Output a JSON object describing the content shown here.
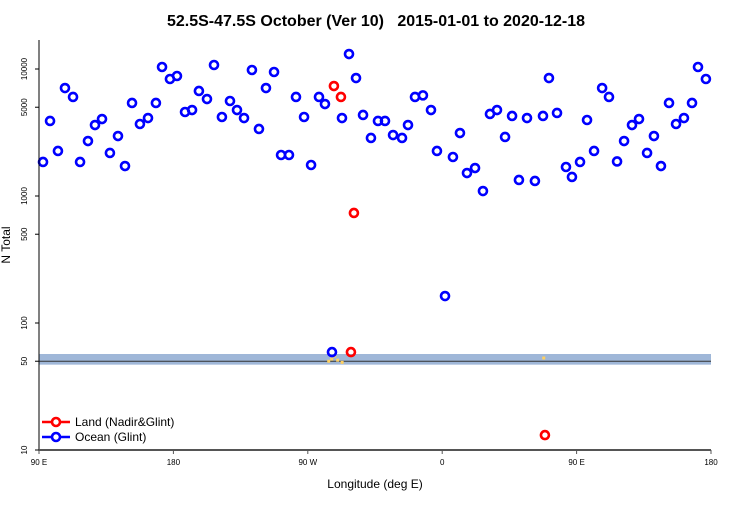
{
  "chart_data": {
    "type": "scatter",
    "title": "52.5S-47.5S October (Ver 10)   2015-01-01 to 2020-12-18",
    "xlabel": "Longitude (deg E)",
    "ylabel": "N Total",
    "yscale": "log",
    "ylim": [
      10,
      16900
    ],
    "xlim": [
      90,
      540
    ],
    "x_note": "x is longitude unwrapped eastward from 90E (180 = dateline, 360 = 0, 450 = 90E, 540 = 180)",
    "xticks": [
      {
        "value": 90,
        "label": "90 E"
      },
      {
        "value": 180,
        "label": "180"
      },
      {
        "value": 270,
        "label": "90 W"
      },
      {
        "value": 360,
        "label": "0"
      },
      {
        "value": 450,
        "label": "90 E"
      },
      {
        "value": 540,
        "label": "180"
      }
    ],
    "yticks": [
      {
        "value": 10,
        "label": "10"
      },
      {
        "value": 50,
        "label": "50"
      },
      {
        "value": 100,
        "label": "100"
      },
      {
        "value": 500,
        "label": "500"
      },
      {
        "value": 1000,
        "label": "1000"
      },
      {
        "value": 5000,
        "label": "5000"
      },
      {
        "value": 10000,
        "label": "10000"
      }
    ],
    "reference_band": {
      "low": 47,
      "high": 57,
      "line": 50,
      "color": "#9fb7d8"
    },
    "legend_position": "bottom-left",
    "series": [
      {
        "name": "Land (Nadir&Glint)",
        "color": "#ff0000",
        "points": [
          [
            287.5,
            7345
          ],
          [
            292.2,
            6025
          ],
          [
            300.9,
            735
          ],
          [
            298.9,
            59
          ],
          [
            428.8,
            13.1
          ]
        ]
      },
      {
        "name": "Ocean (Glint)",
        "color": "#0000ff",
        "points": [
          [
            92.7,
            1853
          ],
          [
            97.4,
            3899
          ],
          [
            102.7,
            2262
          ],
          [
            107.4,
            7080
          ],
          [
            112.8,
            6025
          ],
          [
            117.5,
            1853
          ],
          [
            122.8,
            2710
          ],
          [
            127.5,
            3622
          ],
          [
            132.2,
            4038
          ],
          [
            137.5,
            2183
          ],
          [
            142.9,
            2967
          ],
          [
            147.6,
            1722
          ],
          [
            152.3,
            5400
          ],
          [
            157.6,
            3690
          ],
          [
            163,
            4111
          ],
          [
            168.3,
            5400
          ],
          [
            172.4,
            10370
          ],
          [
            177.7,
            8340
          ],
          [
            182.4,
            8810
          ],
          [
            187.8,
            4585
          ],
          [
            192.5,
            4753
          ],
          [
            197.1,
            6714
          ],
          [
            202.5,
            5803
          ],
          [
            207.2,
            10750
          ],
          [
            212.5,
            4188
          ],
          [
            217.9,
            5598
          ],
          [
            222.6,
            4753
          ],
          [
            227.3,
            4111
          ],
          [
            232.6,
            9820
          ],
          [
            237.3,
            3371
          ],
          [
            242,
            7080
          ],
          [
            247.4,
            9470
          ],
          [
            252.1,
            2103
          ],
          [
            257.4,
            2103
          ],
          [
            262.1,
            6025
          ],
          [
            267.5,
            4188
          ],
          [
            272.2,
            1754
          ],
          [
            277.5,
            6025
          ],
          [
            281.5,
            5300
          ],
          [
            286.2,
            59
          ],
          [
            292.9,
            4111
          ],
          [
            297.6,
            13120
          ],
          [
            302.3,
            8490
          ],
          [
            307,
            4345
          ],
          [
            312.3,
            2864
          ],
          [
            317,
            3899
          ],
          [
            321.7,
            3899
          ],
          [
            327.1,
            3020
          ],
          [
            333.1,
            2864
          ],
          [
            337.1,
            3622
          ],
          [
            341.8,
            6025
          ],
          [
            347.1,
            6200
          ],
          [
            352.5,
            4753
          ],
          [
            356.5,
            2262
          ],
          [
            361.9,
            163
          ],
          [
            367.2,
            2028
          ],
          [
            371.9,
            3133
          ],
          [
            376.6,
            1517
          ],
          [
            382,
            1661
          ],
          [
            387.3,
            1094
          ],
          [
            392,
            4424
          ],
          [
            396.7,
            4753
          ],
          [
            402.1,
            2917
          ],
          [
            406.8,
            4266
          ],
          [
            411.4,
            1337
          ],
          [
            416.8,
            4111
          ],
          [
            422.1,
            1313
          ],
          [
            427.5,
            4266
          ],
          [
            431.5,
            8490
          ],
          [
            436.9,
            4506
          ],
          [
            442.9,
            1692
          ],
          [
            446.9,
            1412
          ],
          [
            452.3,
            1853
          ],
          [
            457,
            3966
          ],
          [
            461.7,
            2262
          ],
          [
            467.1,
            7080
          ],
          [
            471.7,
            6025
          ],
          [
            477.1,
            1870
          ],
          [
            481.8,
            2710
          ],
          [
            487.1,
            3622
          ],
          [
            491.8,
            4038
          ],
          [
            497.2,
            2183
          ],
          [
            501.8,
            2967
          ],
          [
            506.5,
            1722
          ],
          [
            511.9,
            5400
          ],
          [
            516.6,
            3690
          ],
          [
            521.9,
            4111
          ],
          [
            527.3,
            5400
          ],
          [
            531.3,
            10370
          ],
          [
            536.6,
            8340
          ]
        ]
      }
    ],
    "minor_marks": {
      "color": "#ffd060",
      "points": [
        [
          284,
          50
        ],
        [
          286,
          52
        ],
        [
          288,
          55
        ],
        [
          290,
          51
        ],
        [
          293,
          49
        ],
        [
          428,
          53
        ]
      ]
    }
  }
}
